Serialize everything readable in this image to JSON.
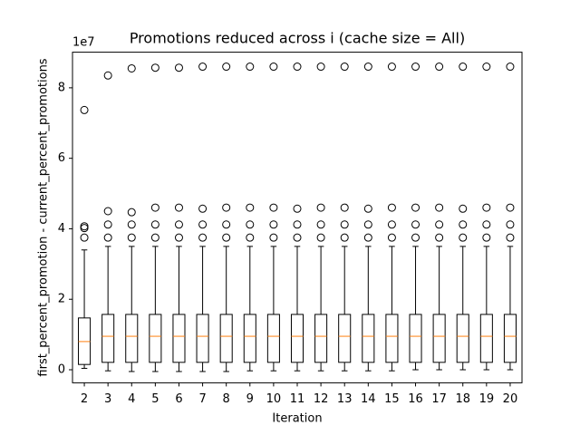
{
  "chart_data": {
    "type": "box",
    "title": "Promotions reduced across i (cache size = All)",
    "x_label": "Iteration",
    "y_label": "first_percent_promotion - current_percent_promotions",
    "y_offset_label": "1e7",
    "categories": [
      2,
      3,
      4,
      5,
      6,
      7,
      8,
      9,
      10,
      11,
      12,
      13,
      14,
      15,
      16,
      17,
      18,
      19,
      20
    ],
    "box_color": "#000000",
    "median_color": "#ff7f0e",
    "ylim": [
      -0.37,
      9.01
    ],
    "yticks": [
      0,
      2,
      4,
      6,
      8
    ],
    "boxes": [
      {
        "whislo": 0.04,
        "q1": 0.15,
        "med": 0.8,
        "q3": 1.47,
        "whishi": 3.4,
        "fliers": [
          3.75,
          4.02,
          4.07,
          7.37
        ]
      },
      {
        "whislo": -0.03,
        "q1": 0.21,
        "med": 0.95,
        "q3": 1.57,
        "whishi": 3.5,
        "fliers": [
          3.75,
          4.12,
          4.5,
          8.35
        ]
      },
      {
        "whislo": -0.05,
        "q1": 0.21,
        "med": 0.95,
        "q3": 1.57,
        "whishi": 3.5,
        "fliers": [
          3.75,
          4.12,
          4.47,
          8.55
        ]
      },
      {
        "whislo": -0.05,
        "q1": 0.21,
        "med": 0.95,
        "q3": 1.57,
        "whishi": 3.5,
        "fliers": [
          3.75,
          4.12,
          4.6,
          8.57
        ]
      },
      {
        "whislo": -0.05,
        "q1": 0.21,
        "med": 0.95,
        "q3": 1.57,
        "whishi": 3.5,
        "fliers": [
          3.75,
          4.12,
          4.6,
          8.57
        ]
      },
      {
        "whislo": -0.05,
        "q1": 0.21,
        "med": 0.95,
        "q3": 1.57,
        "whishi": 3.5,
        "fliers": [
          3.75,
          4.12,
          4.57,
          8.6
        ]
      },
      {
        "whislo": -0.05,
        "q1": 0.21,
        "med": 0.95,
        "q3": 1.57,
        "whishi": 3.5,
        "fliers": [
          3.75,
          4.12,
          4.6,
          8.6
        ]
      },
      {
        "whislo": -0.03,
        "q1": 0.21,
        "med": 0.95,
        "q3": 1.57,
        "whishi": 3.5,
        "fliers": [
          3.75,
          4.12,
          4.6,
          8.6
        ]
      },
      {
        "whislo": -0.03,
        "q1": 0.21,
        "med": 0.95,
        "q3": 1.57,
        "whishi": 3.5,
        "fliers": [
          3.75,
          4.12,
          4.6,
          8.6
        ]
      },
      {
        "whislo": -0.03,
        "q1": 0.21,
        "med": 0.95,
        "q3": 1.57,
        "whishi": 3.5,
        "fliers": [
          3.75,
          4.12,
          4.57,
          8.6
        ]
      },
      {
        "whislo": -0.03,
        "q1": 0.21,
        "med": 0.95,
        "q3": 1.57,
        "whishi": 3.5,
        "fliers": [
          3.75,
          4.12,
          4.6,
          8.6
        ]
      },
      {
        "whislo": -0.03,
        "q1": 0.21,
        "med": 0.95,
        "q3": 1.57,
        "whishi": 3.5,
        "fliers": [
          3.75,
          4.12,
          4.6,
          8.6
        ]
      },
      {
        "whislo": -0.03,
        "q1": 0.21,
        "med": 0.95,
        "q3": 1.57,
        "whishi": 3.5,
        "fliers": [
          3.75,
          4.12,
          4.57,
          8.6
        ]
      },
      {
        "whislo": -0.03,
        "q1": 0.21,
        "med": 0.95,
        "q3": 1.57,
        "whishi": 3.5,
        "fliers": [
          3.75,
          4.12,
          4.6,
          8.6
        ]
      },
      {
        "whislo": 0.0,
        "q1": 0.21,
        "med": 0.95,
        "q3": 1.57,
        "whishi": 3.5,
        "fliers": [
          3.75,
          4.12,
          4.6,
          8.6
        ]
      },
      {
        "whislo": 0.0,
        "q1": 0.21,
        "med": 0.95,
        "q3": 1.57,
        "whishi": 3.5,
        "fliers": [
          3.75,
          4.12,
          4.6,
          8.6
        ]
      },
      {
        "whislo": 0.0,
        "q1": 0.21,
        "med": 0.95,
        "q3": 1.57,
        "whishi": 3.5,
        "fliers": [
          3.75,
          4.12,
          4.57,
          8.6
        ]
      },
      {
        "whislo": 0.0,
        "q1": 0.21,
        "med": 0.95,
        "q3": 1.57,
        "whishi": 3.5,
        "fliers": [
          3.75,
          4.12,
          4.6,
          8.6
        ]
      },
      {
        "whislo": 0.0,
        "q1": 0.21,
        "med": 0.95,
        "q3": 1.57,
        "whishi": 3.5,
        "fliers": [
          3.75,
          4.12,
          4.6,
          8.6
        ]
      }
    ]
  }
}
